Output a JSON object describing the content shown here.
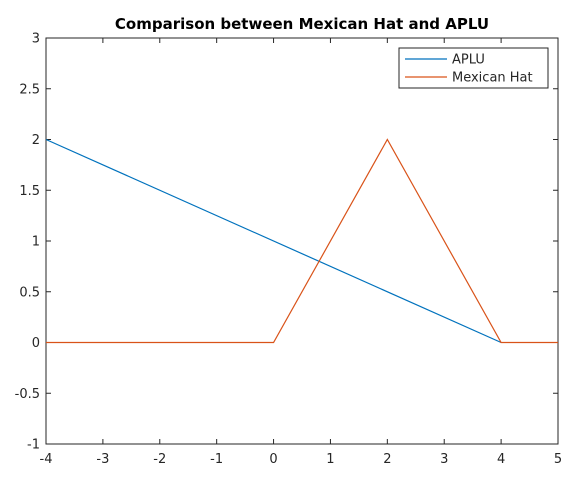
{
  "chart_data": {
    "type": "line",
    "title": "Comparison between Mexican Hat and APLU",
    "xlabel": "",
    "ylabel": "",
    "xlim": [
      -4,
      5
    ],
    "ylim": [
      -1,
      3
    ],
    "xticks": [
      -4,
      -3,
      -2,
      -1,
      0,
      1,
      2,
      3,
      4,
      5
    ],
    "yticks": [
      -1,
      -0.5,
      0,
      0.5,
      1,
      1.5,
      2,
      2.5,
      3
    ],
    "xtick_labels": [
      "-4",
      "-3",
      "-2",
      "-1",
      "0",
      "1",
      "2",
      "3",
      "4",
      "5"
    ],
    "ytick_labels": [
      "-1",
      "-0.5",
      "0",
      "0.5",
      "1",
      "1.5",
      "2",
      "2.5",
      "3"
    ],
    "grid": false,
    "legend_position": "top-right",
    "series": [
      {
        "name": "APLU",
        "color": "#0072bd",
        "x": [
          -4,
          4
        ],
        "y": [
          2,
          0
        ]
      },
      {
        "name": "Mexican Hat",
        "color": "#d95319",
        "x": [
          -4,
          0,
          2,
          4,
          5
        ],
        "y": [
          0,
          0,
          2,
          0,
          0
        ]
      }
    ]
  }
}
